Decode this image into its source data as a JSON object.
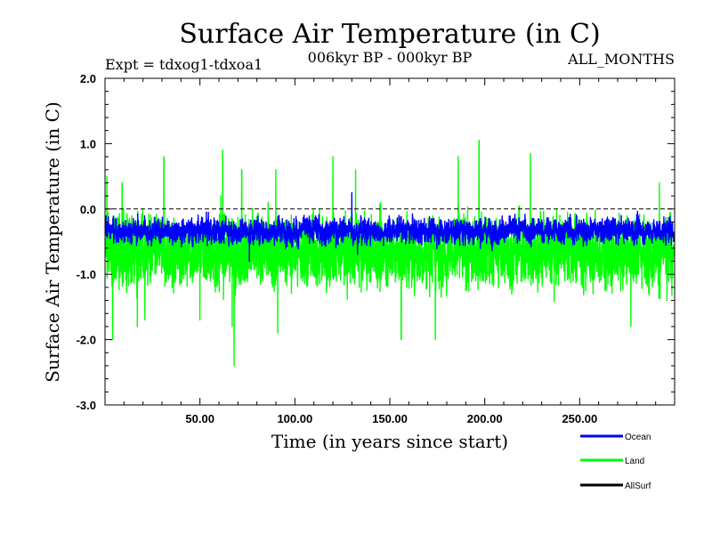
{
  "chart_data": {
    "type": "line",
    "title": "Surface Air Temperature (in C)",
    "subtitle_left": "Expt = tdxog1-tdxoa1",
    "subtitle_center": "006kyr BP - 000kyr BP",
    "subtitle_right": "ALL_MONTHS",
    "xlabel": "Time (in years since start)",
    "ylabel": "Surface Air Temperature (in C)",
    "xlim": [
      0,
      300
    ],
    "ylim": [
      -3.0,
      2.0
    ],
    "xticks": [
      50,
      100,
      150,
      200,
      250
    ],
    "xtick_labels": [
      "50.00",
      "100.00",
      "150.00",
      "200.00",
      "250.00"
    ],
    "yticks": [
      2.0,
      1.0,
      0.0,
      -1.0,
      -2.0,
      -3.0
    ],
    "ytick_labels": [
      "2.0",
      "1.0",
      "0.0",
      "-1.0",
      "-2.0",
      "-3.0"
    ],
    "reference_line": 0.0,
    "series": [
      {
        "name": "Land",
        "color": "#00ff00",
        "mean": -0.65,
        "amplitude": 0.45,
        "values_approx": [
          {
            "x": 1,
            "y": 0.5
          },
          {
            "x": 4,
            "y": -2.0
          },
          {
            "x": 9,
            "y": 0.4
          },
          {
            "x": 17,
            "y": -1.8
          },
          {
            "x": 21,
            "y": -1.7
          },
          {
            "x": 31,
            "y": 0.8
          },
          {
            "x": 50,
            "y": -1.7
          },
          {
            "x": 62,
            "y": 0.9
          },
          {
            "x": 67,
            "y": -1.8
          },
          {
            "x": 68,
            "y": -2.4
          },
          {
            "x": 72,
            "y": 0.6
          },
          {
            "x": 90,
            "y": 0.6
          },
          {
            "x": 91,
            "y": -1.9
          },
          {
            "x": 120,
            "y": 0.8
          },
          {
            "x": 132,
            "y": 0.6
          },
          {
            "x": 156,
            "y": -2.0
          },
          {
            "x": 174,
            "y": -2.0
          },
          {
            "x": 186,
            "y": 0.8
          },
          {
            "x": 197,
            "y": 1.05
          },
          {
            "x": 224,
            "y": 0.85
          },
          {
            "x": 277,
            "y": -1.8
          },
          {
            "x": 292,
            "y": 0.4
          },
          {
            "x": 296,
            "y": -1.4
          }
        ]
      },
      {
        "name": "Ocean",
        "color": "#0000ff",
        "mean": -0.33,
        "amplitude": 0.15,
        "values_approx": [
          {
            "x": 1,
            "y": -0.2
          },
          {
            "x": 30,
            "y": -0.35
          },
          {
            "x": 76,
            "y": -0.8
          },
          {
            "x": 100,
            "y": -0.3
          },
          {
            "x": 130,
            "y": 0.25
          },
          {
            "x": 165,
            "y": -0.4
          },
          {
            "x": 200,
            "y": -0.2
          },
          {
            "x": 250,
            "y": -0.35
          },
          {
            "x": 297,
            "y": -0.3
          }
        ]
      }
    ],
    "legend": {
      "placement": "bottom-right",
      "entries": [
        {
          "label": "Ocean",
          "color": "#0000ff"
        },
        {
          "label": "Land",
          "color": "#00ff00"
        },
        {
          "label": "AllSurf",
          "color": "#000000"
        }
      ]
    }
  }
}
